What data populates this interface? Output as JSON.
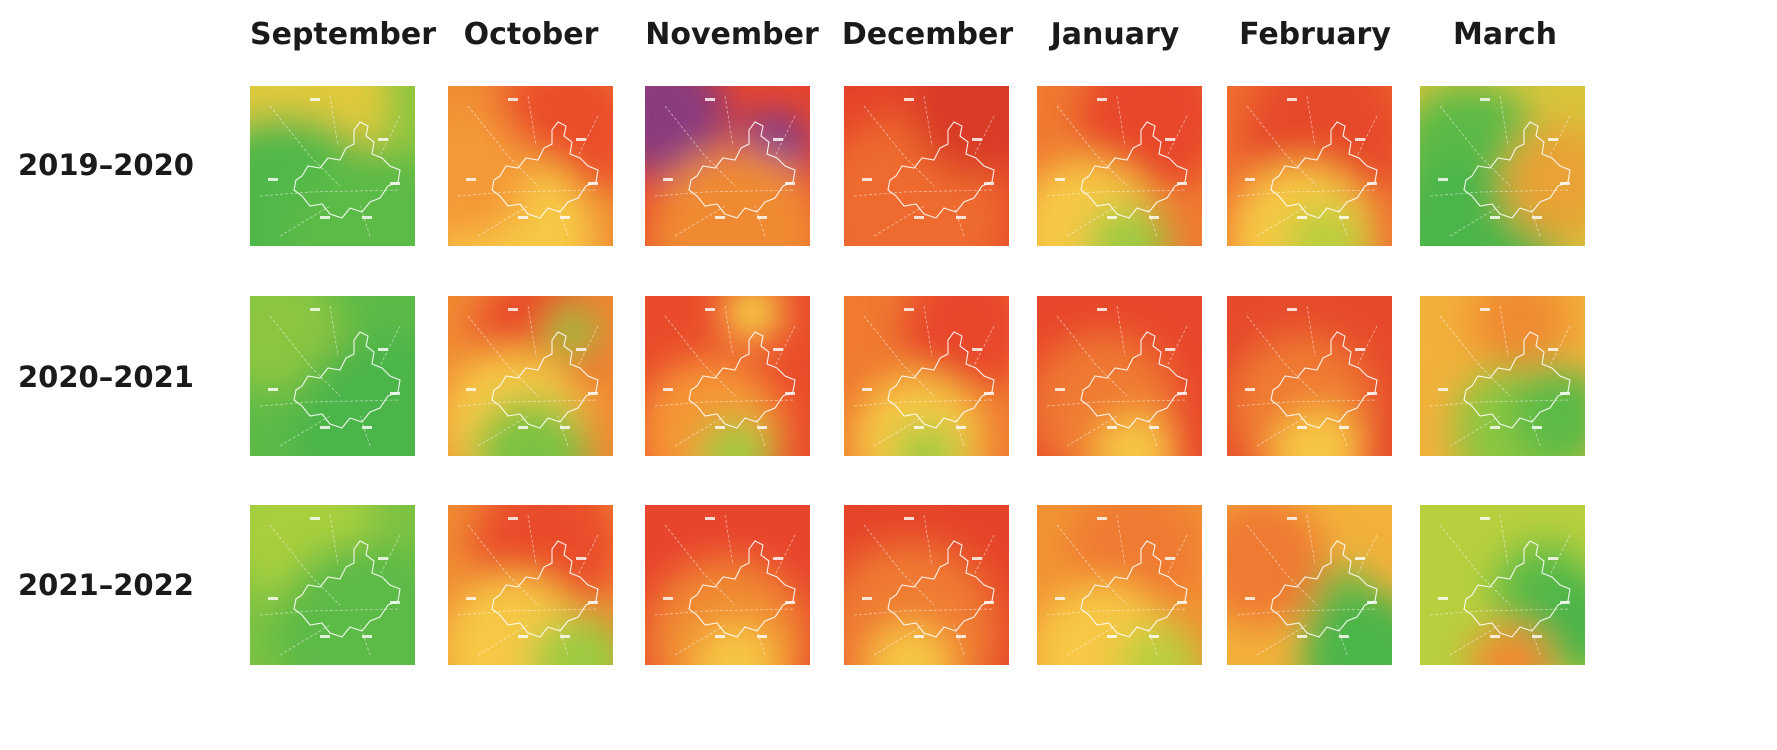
{
  "grid": {
    "columns": [
      "September",
      "October",
      "November",
      "December",
      "January",
      "February",
      "March"
    ],
    "rows": [
      {
        "label": "2019–2020",
        "tiles": [
          {
            "month": "September",
            "base": "#8cc63f",
            "blobs": [
              [
                "#e2c93a",
                0.3,
                0.1,
                0.55
              ],
              [
                "#50b848",
                0.2,
                0.9,
                0.7
              ],
              [
                "#5cba47",
                0.75,
                0.95,
                0.55
              ]
            ]
          },
          {
            "month": "October",
            "base": "#f08a33",
            "blobs": [
              [
                "#ea4d2a",
                0.72,
                0.28,
                0.45
              ],
              [
                "#f7c844",
                0.4,
                0.95,
                0.5
              ],
              [
                "#f49a38",
                0.1,
                0.55,
                0.4
              ]
            ]
          },
          {
            "month": "November",
            "base": "#e8452d",
            "blobs": [
              [
                "#8a3a7e",
                0.12,
                0.18,
                0.38
              ],
              [
                "#7a3a8e",
                0.78,
                0.38,
                0.22
              ],
              [
                "#f08a33",
                0.55,
                0.95,
                0.55
              ]
            ]
          },
          {
            "month": "December",
            "base": "#e54429",
            "blobs": [
              [
                "#ee6a2e",
                0.4,
                0.8,
                0.6
              ],
              [
                "#d93b28",
                0.8,
                0.15,
                0.4
              ]
            ]
          },
          {
            "month": "January",
            "base": "#ef7a30",
            "blobs": [
              [
                "#e8472b",
                0.7,
                0.2,
                0.45
              ],
              [
                "#f7c844",
                0.3,
                0.92,
                0.45
              ],
              [
                "#9ccb43",
                0.55,
                1.0,
                0.25
              ]
            ]
          },
          {
            "month": "February",
            "base": "#ef6f2f",
            "blobs": [
              [
                "#e64a2b",
                0.6,
                0.3,
                0.5
              ],
              [
                "#f7c844",
                0.45,
                0.95,
                0.45
              ],
              [
                "#b8cf3e",
                0.6,
                1.0,
                0.25
              ]
            ]
          },
          {
            "month": "March",
            "base": "#d8c43a",
            "blobs": [
              [
                "#5cba47",
                0.3,
                0.45,
                0.45
              ],
              [
                "#4cb54a",
                0.3,
                1.0,
                0.55
              ],
              [
                "#e9a235",
                0.85,
                0.6,
                0.35
              ]
            ]
          }
        ]
      },
      {
        "label": "2020–2021",
        "tiles": [
          {
            "month": "September",
            "base": "#5cba47",
            "blobs": [
              [
                "#f29233",
                0.5,
                0.35,
                0.12
              ],
              [
                "#8cc63f",
                0.15,
                0.2,
                0.4
              ],
              [
                "#4cb54a",
                0.8,
                0.8,
                0.55
              ]
            ]
          },
          {
            "month": "October",
            "base": "#f08a33",
            "blobs": [
              [
                "#e94b2b",
                0.55,
                0.25,
                0.4
              ],
              [
                "#8cc63f",
                0.75,
                0.22,
                0.15
              ],
              [
                "#f7c844",
                0.4,
                0.8,
                0.45
              ],
              [
                "#7cc242",
                0.5,
                1.0,
                0.35
              ]
            ]
          },
          {
            "month": "November",
            "base": "#e94b2b",
            "blobs": [
              [
                "#f7d548",
                0.65,
                0.1,
                0.18
              ],
              [
                "#f59635",
                0.4,
                0.85,
                0.45
              ],
              [
                "#9ccb43",
                0.55,
                1.0,
                0.22
              ]
            ]
          },
          {
            "month": "December",
            "base": "#ef7a30",
            "blobs": [
              [
                "#e8472b",
                0.75,
                0.2,
                0.4
              ],
              [
                "#f7c844",
                0.45,
                0.9,
                0.4
              ],
              [
                "#9ccb43",
                0.5,
                1.0,
                0.2
              ]
            ]
          },
          {
            "month": "January",
            "base": "#e8472b",
            "blobs": [
              [
                "#ef7a30",
                0.4,
                0.7,
                0.45
              ],
              [
                "#f7c844",
                0.6,
                1.0,
                0.25
              ]
            ]
          },
          {
            "month": "February",
            "base": "#e64a2b",
            "blobs": [
              [
                "#ef7a30",
                0.45,
                0.7,
                0.45
              ],
              [
                "#f7c844",
                0.55,
                1.0,
                0.28
              ]
            ]
          },
          {
            "month": "March",
            "base": "#f2b13a",
            "blobs": [
              [
                "#8cc63f",
                0.65,
                0.85,
                0.45
              ],
              [
                "#5cba47",
                0.85,
                0.75,
                0.3
              ],
              [
                "#f08a33",
                0.6,
                0.15,
                0.3
              ]
            ]
          }
        ]
      },
      {
        "label": "2021–2022",
        "tiles": [
          {
            "month": "September",
            "base": "#7cc242",
            "blobs": [
              [
                "#a8cf3c",
                0.3,
                0.15,
                0.45
              ],
              [
                "#5cba47",
                0.7,
                0.8,
                0.55
              ]
            ]
          },
          {
            "month": "October",
            "base": "#f08a33",
            "blobs": [
              [
                "#e94b2b",
                0.6,
                0.25,
                0.45
              ],
              [
                "#f7c844",
                0.4,
                0.9,
                0.45
              ],
              [
                "#9ccb43",
                0.8,
                1.0,
                0.3
              ]
            ]
          },
          {
            "month": "November",
            "base": "#e8452d",
            "blobs": [
              [
                "#f08a33",
                0.5,
                0.85,
                0.5
              ],
              [
                "#f7c844",
                0.55,
                1.0,
                0.25
              ]
            ]
          },
          {
            "month": "December",
            "base": "#e54429",
            "blobs": [
              [
                "#ef7a30",
                0.4,
                0.8,
                0.55
              ],
              [
                "#f7c844",
                0.4,
                1.0,
                0.25
              ]
            ]
          },
          {
            "month": "January",
            "base": "#f29233",
            "blobs": [
              [
                "#ef7a30",
                0.6,
                0.3,
                0.4
              ],
              [
                "#f7c844",
                0.4,
                0.95,
                0.45
              ],
              [
                "#b8cf3e",
                0.75,
                1.0,
                0.25
              ]
            ]
          },
          {
            "month": "February",
            "base": "#f2b13a",
            "blobs": [
              [
                "#5cba47",
                0.65,
                0.6,
                0.22
              ],
              [
                "#4cb54a",
                0.85,
                0.95,
                0.4
              ],
              [
                "#ef7a30",
                0.2,
                0.35,
                0.4
              ]
            ]
          },
          {
            "month": "March",
            "base": "#b8cf3e",
            "blobs": [
              [
                "#5cba47",
                0.75,
                0.55,
                0.3
              ],
              [
                "#4cb54a",
                0.95,
                0.75,
                0.3
              ],
              [
                "#f08a33",
                0.55,
                1.0,
                0.25
              ]
            ]
          }
        ]
      }
    ]
  }
}
